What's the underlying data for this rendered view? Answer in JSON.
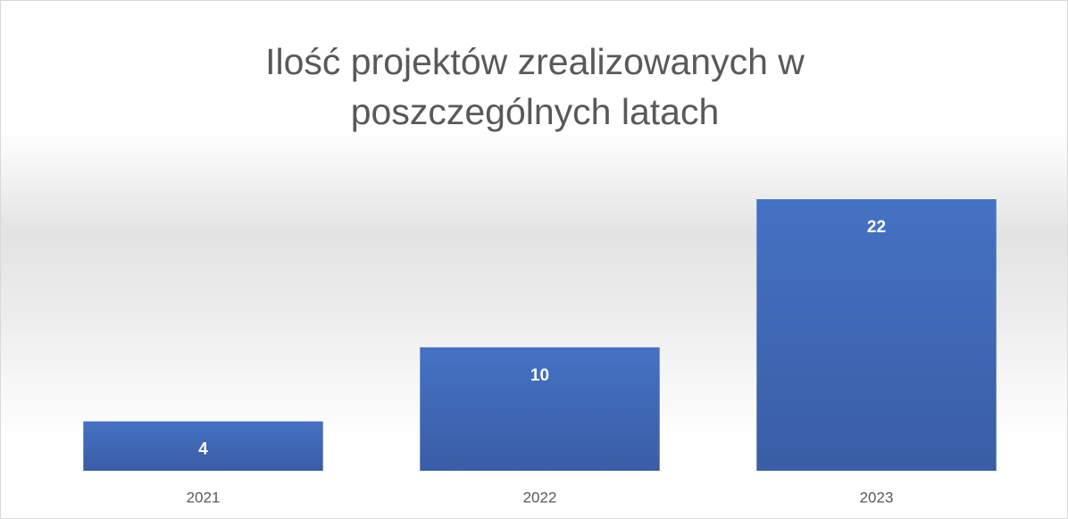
{
  "chart_data": {
    "type": "bar",
    "title": "Ilość projektów zrealizowanych w poszczególnych latach",
    "categories": [
      "2021",
      "2022",
      "2023"
    ],
    "values": [
      4,
      10,
      22
    ],
    "color": "#4472c4"
  }
}
